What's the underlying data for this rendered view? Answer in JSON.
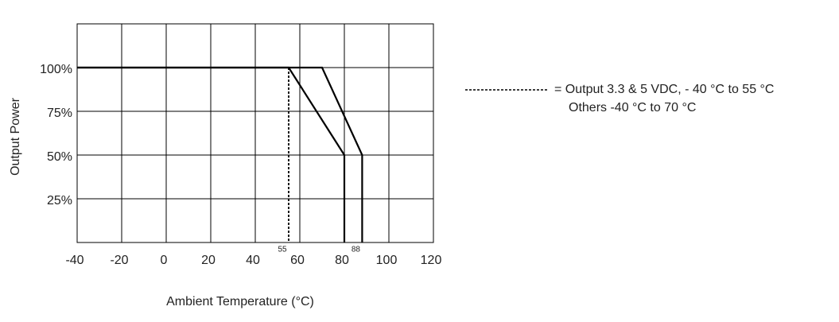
{
  "chart_data": {
    "type": "line",
    "x_label": "Ambient Temperature (°C)",
    "y_label": "Output Power",
    "xlim": [
      -40,
      120
    ],
    "xticks": [
      -40,
      -20,
      0,
      20,
      40,
      60,
      80,
      100,
      120
    ],
    "ylim": [
      0,
      125
    ],
    "yticks": [
      {
        "value": 25,
        "label": "25%"
      },
      {
        "value": 50,
        "label": "50%"
      },
      {
        "value": 75,
        "label": "75%"
      },
      {
        "value": 100,
        "label": "100%"
      }
    ],
    "grid": true,
    "series": [
      {
        "color": "#000000",
        "style": "solid",
        "x": [
          -40,
          70,
          88,
          88
        ],
        "values": [
          100,
          100,
          50,
          0
        ]
      },
      {
        "color": "#000000",
        "style": "solid",
        "x": [
          -40,
          55,
          80,
          80
        ],
        "values": [
          100,
          100,
          50,
          0
        ]
      },
      {
        "color": "#000000",
        "style": "dashed",
        "x": [
          55,
          55
        ],
        "values": [
          100,
          0
        ]
      }
    ],
    "annotations": [
      {
        "text": "55",
        "x": 55
      },
      {
        "text": "88",
        "x": 88
      }
    ],
    "legend_lines": [
      "= Output 3.3 & 5 VDC, - 40 °C to 55 °C",
      "Others -40 °C to 70 °C"
    ]
  }
}
